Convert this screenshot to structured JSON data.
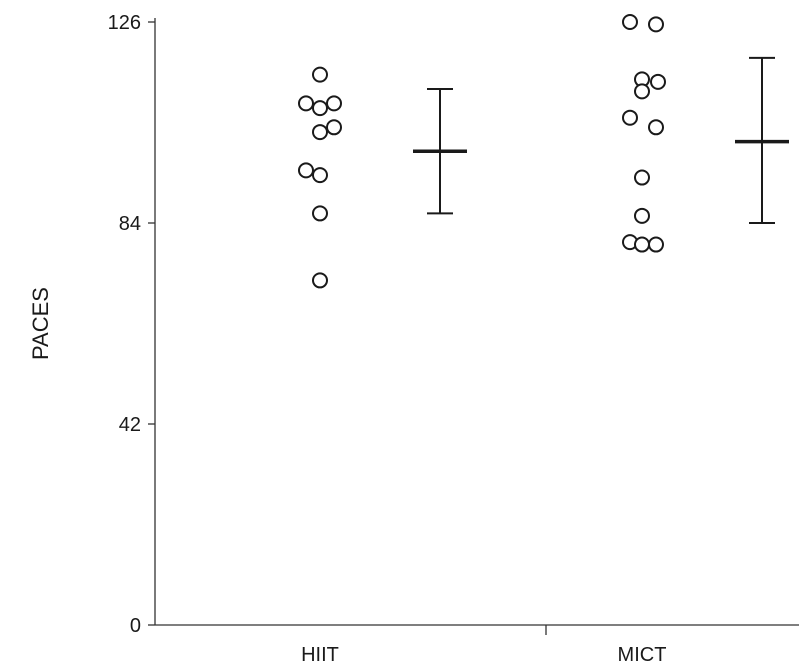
{
  "chart_data": {
    "type": "scatter",
    "title": "",
    "xlabel": "",
    "ylabel": "PACES",
    "ylim": [
      0,
      126
    ],
    "yticks": [
      0,
      42,
      84,
      126
    ],
    "grid": false,
    "categories": [
      "HIIT",
      "MICT"
    ],
    "series": [
      {
        "category": "HIIT",
        "points": [
          115,
          109,
          108,
          109,
          104,
          103,
          95,
          94,
          86,
          72
        ],
        "mean": 99,
        "upper": 112,
        "lower": 86
      },
      {
        "category": "MICT",
        "points": [
          126,
          125.5,
          114,
          113.5,
          111.5,
          106,
          104,
          93.5,
          85.5,
          80,
          79.5,
          79.5
        ],
        "mean": 101,
        "upper": 118.5,
        "lower": 84
      }
    ]
  }
}
